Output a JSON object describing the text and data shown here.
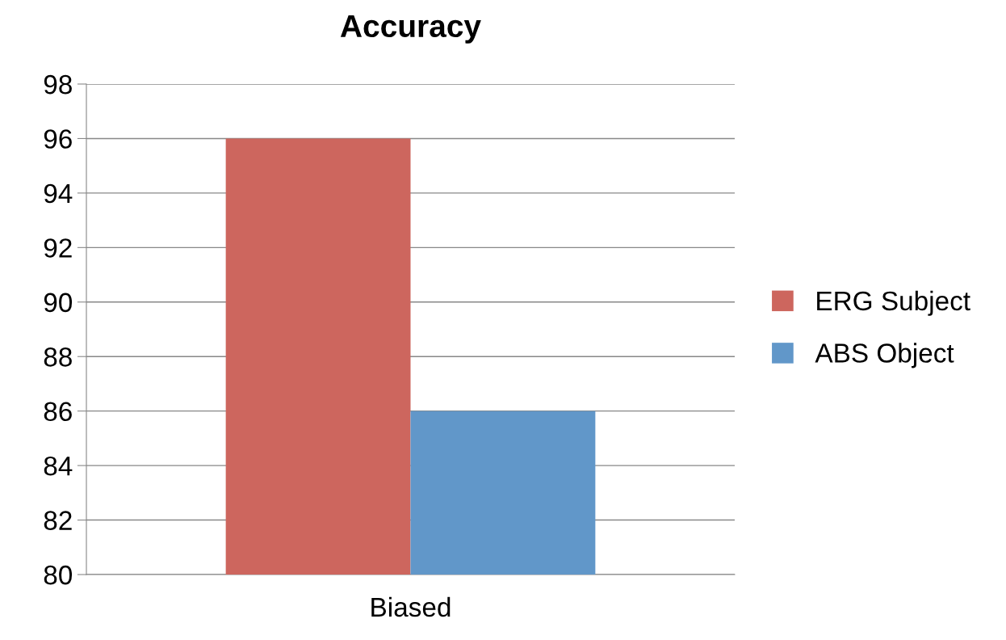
{
  "chart_data": {
    "type": "bar",
    "title": "Accuracy",
    "categories": [
      "Biased"
    ],
    "series": [
      {
        "name": "ERG Subject",
        "color": "#cd665e",
        "values": [
          96
        ]
      },
      {
        "name": "ABS Object",
        "color": "#6197c9",
        "values": [
          86
        ]
      }
    ],
    "ylim": [
      80,
      98
    ],
    "yticks": [
      80,
      82,
      84,
      86,
      88,
      90,
      92,
      94,
      96,
      98
    ],
    "grid": "y",
    "legend": "right"
  }
}
